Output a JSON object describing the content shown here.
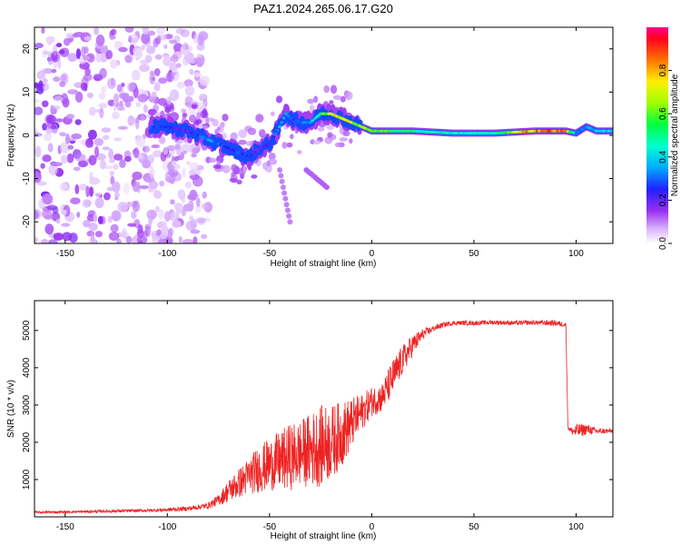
{
  "title": "PAZ1.2024.265.06.17.G20",
  "colors": {
    "snr_line": "#ee2222",
    "frame": "#000000",
    "low_amplitude": "#9a30f0",
    "mid_amplitude": "#00d0ff",
    "high_amplitude": "#ff2020"
  },
  "chart_data": [
    {
      "type": "heatmap",
      "title": "PAZ1.2024.265.06.17.G20",
      "xlabel": "Height of straight line (km)",
      "ylabel": "Frequency (Hz)",
      "xlim": [
        -165,
        118
      ],
      "ylim": [
        -25,
        25
      ],
      "xticks": [
        -150,
        -100,
        -50,
        0,
        50,
        100
      ],
      "yticks": [
        -20,
        -10,
        0,
        10,
        20
      ],
      "colorbar": {
        "label": "Normalized spectral amplitude",
        "range": [
          0,
          1
        ],
        "ticks": [
          0.0,
          0.2,
          0.4,
          0.6,
          0.8
        ],
        "tick_labels": [
          "0.0",
          "0.2",
          "0.4",
          "0.6",
          "0.8"
        ]
      },
      "ridge": {
        "x": [
          -108,
          -100,
          -90,
          -80,
          -75,
          -70,
          -65,
          -60,
          -55,
          -50,
          -45,
          -42,
          -40,
          -35,
          -30,
          -25,
          -20,
          -15,
          -10,
          -5,
          0,
          10,
          20,
          40,
          60,
          80,
          95,
          100,
          105,
          110,
          118
        ],
        "frequency": [
          2,
          2,
          1,
          -1,
          -2,
          -3,
          -4,
          -5,
          -3,
          -2,
          2,
          5,
          4,
          3,
          3,
          5,
          5,
          4,
          3,
          2,
          1,
          1,
          1,
          0.5,
          0.5,
          1,
          1,
          0.5,
          2,
          1,
          1
        ],
        "amplitude": [
          0.3,
          0.25,
          0.2,
          0.35,
          0.3,
          0.25,
          0.3,
          0.25,
          0.2,
          0.25,
          0.35,
          0.4,
          0.3,
          0.3,
          0.35,
          0.55,
          0.7,
          0.75,
          0.7,
          0.6,
          0.65,
          0.55,
          0.5,
          0.45,
          0.45,
          0.9,
          0.85,
          0.3,
          0.35,
          0.4,
          0.4
        ]
      },
      "noise_region_x": [
        -165,
        -80
      ]
    },
    {
      "type": "line",
      "xlabel": "Height of straight line (km)",
      "ylabel": "SNR (10 * v/v)",
      "xlim": [
        -165,
        118
      ],
      "ylim": [
        0,
        5800
      ],
      "xticks": [
        -150,
        -100,
        -50,
        0,
        50,
        100
      ],
      "yticks": [
        1000,
        2000,
        3000,
        4000,
        5000
      ],
      "series": [
        {
          "x": [
            -165,
            -150,
            -130,
            -110,
            -100,
            -90,
            -80,
            -75,
            -70,
            -65,
            -60,
            -55,
            -50,
            -45,
            -40,
            -35,
            -30,
            -25,
            -20,
            -15,
            -10,
            -5,
            0,
            5,
            10,
            15,
            20,
            25,
            30,
            35,
            40,
            50,
            60,
            70,
            80,
            90,
            95,
            96,
            98,
            100,
            105,
            110,
            118
          ],
          "y": [
            120,
            130,
            150,
            170,
            190,
            220,
            300,
            450,
            700,
            900,
            1100,
            1300,
            1400,
            1500,
            1600,
            1700,
            1800,
            1900,
            2000,
            2200,
            2500,
            2800,
            3100,
            3200,
            3700,
            4200,
            4600,
            4900,
            5050,
            5150,
            5200,
            5200,
            5220,
            5200,
            5210,
            5200,
            5150,
            2400,
            2300,
            2300,
            2350,
            2300,
            2300
          ],
          "noise": [
            30,
            30,
            40,
            40,
            50,
            60,
            80,
            150,
            300,
            400,
            500,
            650,
            700,
            800,
            900,
            900,
            1000,
            1100,
            1000,
            900,
            700,
            500,
            400,
            400,
            500,
            400,
            300,
            150,
            80,
            70,
            60,
            60,
            60,
            60,
            60,
            80,
            60,
            60,
            100,
            200,
            150,
            80,
            60
          ]
        }
      ]
    }
  ]
}
